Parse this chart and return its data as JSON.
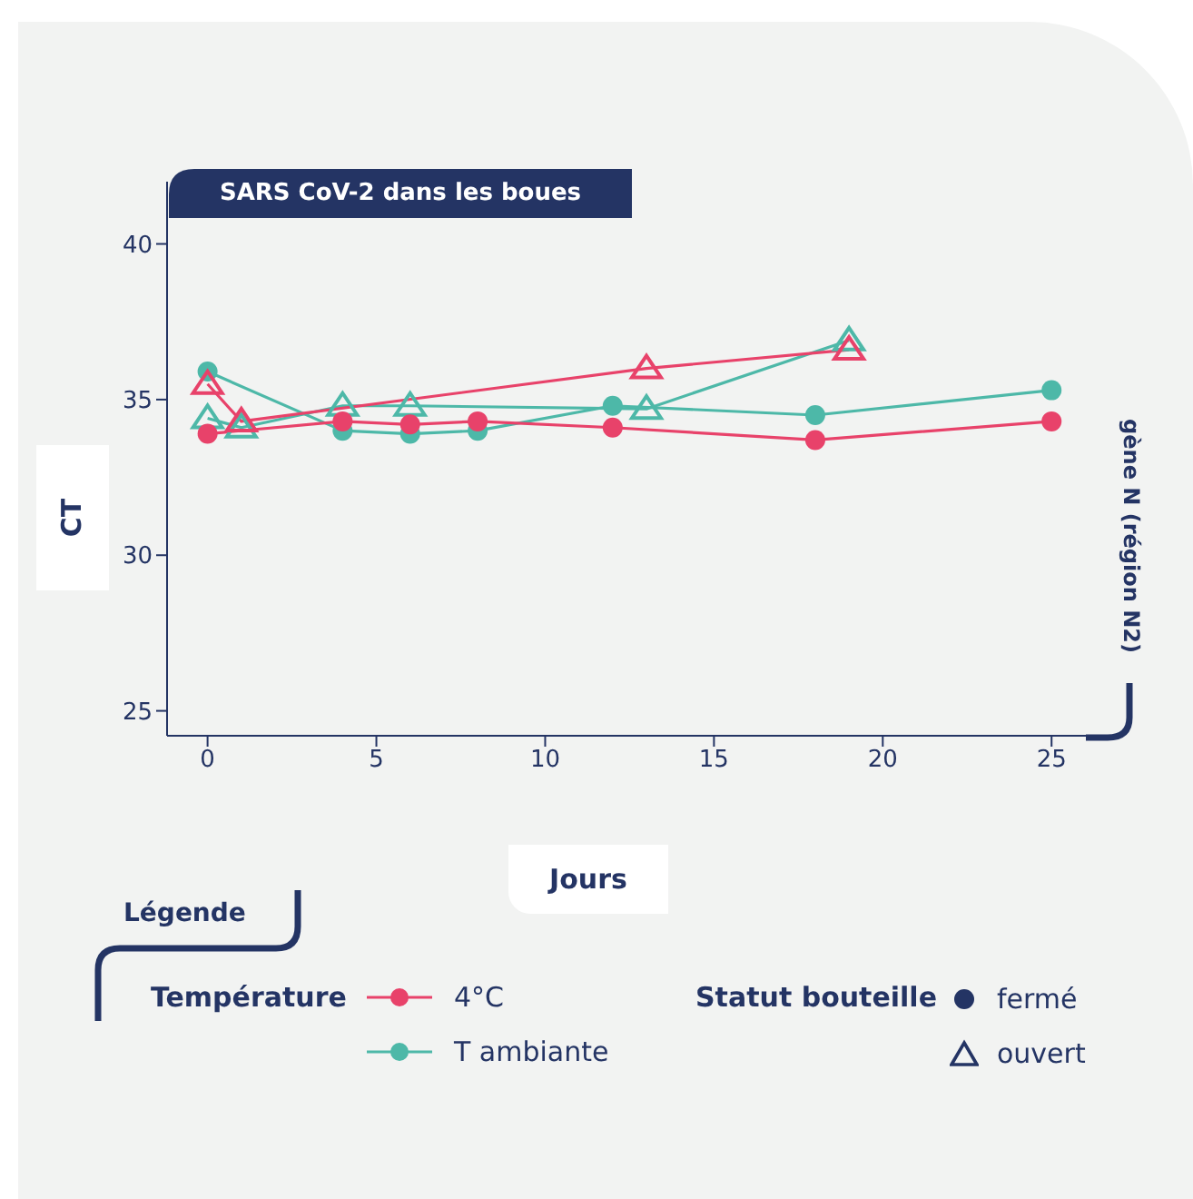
{
  "chart_data": {
    "type": "line",
    "title": "SARS CoV-2 dans les boues",
    "xlabel": "Jours",
    "ylabel": "CT",
    "legend_title": "Température",
    "legend": "bottom left",
    "annotations": [
      "gène N (région N2)",
      "Légende",
      "Statut bouteille",
      "fermé",
      "ouvert"
    ],
    "xlim": [
      -1.2,
      26.5
    ],
    "xticks": [
      0,
      5,
      10,
      15,
      20,
      25
    ],
    "ylim": [
      24.2,
      42
    ],
    "yticks": [
      25,
      30,
      35,
      40
    ],
    "series": [
      {
        "name": "4°C",
        "color": "#e8426a",
        "marker": "circle",
        "x": [
          0,
          4,
          6,
          8,
          12,
          18,
          25
        ],
        "values": [
          33.9,
          34.3,
          34.2,
          34.3,
          34.1,
          33.7,
          34.3
        ]
      },
      {
        "color": "#e8426a",
        "marker": "triangle",
        "x": [
          0,
          1,
          13,
          19
        ],
        "values": [
          35.5,
          34.3,
          36.0,
          36.6
        ]
      },
      {
        "name": "T ambiante",
        "color": "#4db8a8",
        "marker": "circle",
        "x": [
          0,
          4,
          6,
          8,
          12,
          18,
          25
        ],
        "values": [
          35.9,
          34.0,
          33.9,
          34.0,
          34.8,
          34.5,
          35.3
        ]
      },
      {
        "color": "#4db8a8",
        "marker": "triangle",
        "x": [
          0,
          1,
          4,
          6,
          13,
          19
        ],
        "values": [
          34.4,
          34.1,
          34.8,
          34.8,
          34.7,
          36.9
        ]
      }
    ]
  }
}
